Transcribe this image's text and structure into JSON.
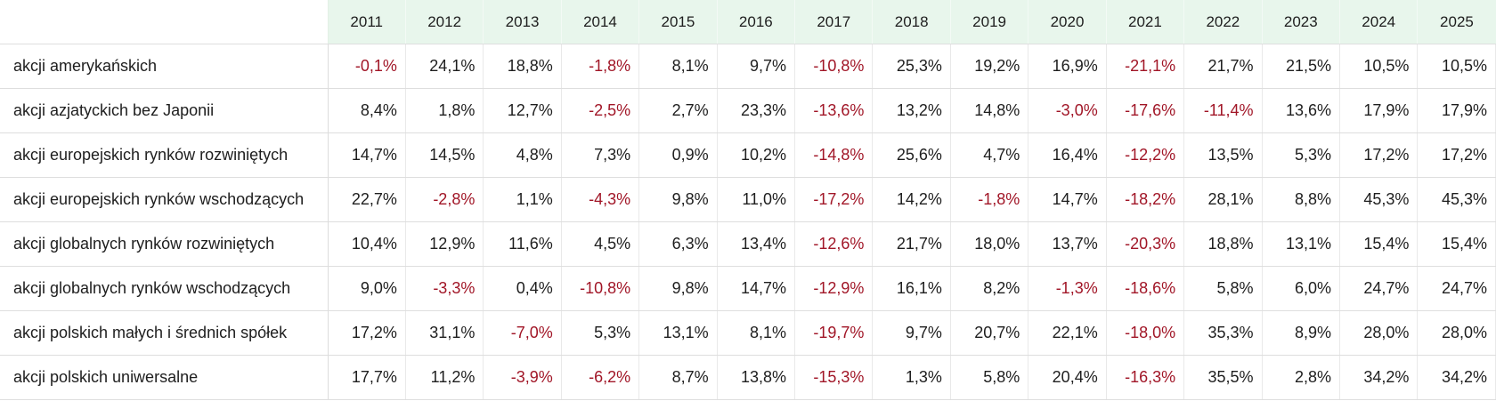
{
  "table": {
    "corner_label": "",
    "columns": [
      "2011",
      "2012",
      "2013",
      "2014",
      "2015",
      "2016",
      "2017",
      "2018",
      "2019",
      "2020",
      "2021",
      "2022",
      "2023",
      "2024",
      "2025"
    ],
    "rows": [
      {
        "label": "akcji amerykańskich",
        "values": [
          "-0,1%",
          "24,1%",
          "18,8%",
          "-1,8%",
          "8,1%",
          "9,7%",
          "-10,8%",
          "25,3%",
          "19,2%",
          "16,9%",
          "-21,1%",
          "21,7%",
          "21,5%",
          "10,5%",
          "10,5%"
        ]
      },
      {
        "label": "akcji azjatyckich bez Japonii",
        "values": [
          "8,4%",
          "1,8%",
          "12,7%",
          "-2,5%",
          "2,7%",
          "23,3%",
          "-13,6%",
          "13,2%",
          "14,8%",
          "-3,0%",
          "-17,6%",
          "-11,4%",
          "13,6%",
          "17,9%",
          "17,9%"
        ]
      },
      {
        "label": "akcji europejskich rynków rozwiniętych",
        "values": [
          "14,7%",
          "14,5%",
          "4,8%",
          "7,3%",
          "0,9%",
          "10,2%",
          "-14,8%",
          "25,6%",
          "4,7%",
          "16,4%",
          "-12,2%",
          "13,5%",
          "5,3%",
          "17,2%",
          "17,2%"
        ]
      },
      {
        "label": "akcji europejskich rynków wschodzących",
        "values": [
          "22,7%",
          "-2,8%",
          "1,1%",
          "-4,3%",
          "9,8%",
          "11,0%",
          "-17,2%",
          "14,2%",
          "-1,8%",
          "14,7%",
          "-18,2%",
          "28,1%",
          "8,8%",
          "45,3%",
          "45,3%"
        ]
      },
      {
        "label": "akcji globalnych rynków rozwiniętych",
        "values": [
          "10,4%",
          "12,9%",
          "11,6%",
          "4,5%",
          "6,3%",
          "13,4%",
          "-12,6%",
          "21,7%",
          "18,0%",
          "13,7%",
          "-20,3%",
          "18,8%",
          "13,1%",
          "15,4%",
          "15,4%"
        ]
      },
      {
        "label": "akcji globalnych rynków wschodzących",
        "values": [
          "9,0%",
          "-3,3%",
          "0,4%",
          "-10,8%",
          "9,8%",
          "14,7%",
          "-12,9%",
          "16,1%",
          "8,2%",
          "-1,3%",
          "-18,6%",
          "5,8%",
          "6,0%",
          "24,7%",
          "24,7%"
        ]
      },
      {
        "label": "akcji polskich małych i średnich spółek",
        "values": [
          "17,2%",
          "31,1%",
          "-7,0%",
          "5,3%",
          "13,1%",
          "8,1%",
          "-19,7%",
          "9,7%",
          "20,7%",
          "22,1%",
          "-18,0%",
          "35,3%",
          "8,9%",
          "28,0%",
          "28,0%"
        ]
      },
      {
        "label": "akcji polskich uniwersalne",
        "values": [
          "17,7%",
          "11,2%",
          "-3,9%",
          "-6,2%",
          "8,7%",
          "13,8%",
          "-15,3%",
          "1,3%",
          "5,8%",
          "20,4%",
          "-16,3%",
          "35,5%",
          "2,8%",
          "34,2%",
          "34,2%"
        ]
      }
    ]
  },
  "colors": {
    "negative_value": "#a11627",
    "positive_value": "#1e1e1e",
    "header_background": "#e8f6ec",
    "grid_line": "#dedede"
  },
  "chart_data": {
    "type": "table",
    "title": "",
    "categories": [
      2011,
      2012,
      2013,
      2014,
      2015,
      2016,
      2017,
      2018,
      2019,
      2020,
      2021,
      2022,
      2023,
      2024,
      2025
    ],
    "value_unit": "percent",
    "decimal_separator": ",",
    "series": [
      {
        "name": "akcji amerykańskich",
        "values": [
          -0.1,
          24.1,
          18.8,
          -1.8,
          8.1,
          9.7,
          -10.8,
          25.3,
          19.2,
          16.9,
          -21.1,
          21.7,
          21.5,
          10.5,
          10.5
        ]
      },
      {
        "name": "akcji azjatyckich bez Japonii",
        "values": [
          8.4,
          1.8,
          12.7,
          -2.5,
          2.7,
          23.3,
          -13.6,
          13.2,
          14.8,
          -3.0,
          -17.6,
          -11.4,
          13.6,
          17.9,
          17.9
        ]
      },
      {
        "name": "akcji europejskich rynków rozwiniętych",
        "values": [
          14.7,
          14.5,
          4.8,
          7.3,
          0.9,
          10.2,
          -14.8,
          25.6,
          4.7,
          16.4,
          -12.2,
          13.5,
          5.3,
          17.2,
          17.2
        ]
      },
      {
        "name": "akcji europejskich rynków wschodzących",
        "values": [
          22.7,
          -2.8,
          1.1,
          -4.3,
          9.8,
          11.0,
          -17.2,
          14.2,
          -1.8,
          14.7,
          -18.2,
          28.1,
          8.8,
          45.3,
          45.3
        ]
      },
      {
        "name": "akcji globalnych rynków rozwiniętych",
        "values": [
          10.4,
          12.9,
          11.6,
          4.5,
          6.3,
          13.4,
          -12.6,
          21.7,
          18.0,
          13.7,
          -20.3,
          18.8,
          13.1,
          15.4,
          15.4
        ]
      },
      {
        "name": "akcji globalnych rynków wschodzących",
        "values": [
          9.0,
          -3.3,
          0.4,
          -10.8,
          9.8,
          14.7,
          -12.9,
          16.1,
          8.2,
          -1.3,
          -18.6,
          5.8,
          6.0,
          24.7,
          24.7
        ]
      },
      {
        "name": "akcji polskich małych i średnich spółek",
        "values": [
          17.2,
          31.1,
          -7.0,
          5.3,
          13.1,
          8.1,
          -19.7,
          9.7,
          20.7,
          22.1,
          -18.0,
          35.3,
          8.9,
          28.0,
          28.0
        ]
      },
      {
        "name": "akcji polskich uniwersalne",
        "values": [
          17.7,
          11.2,
          -3.9,
          -6.2,
          8.7,
          13.8,
          -15.3,
          1.3,
          5.8,
          20.4,
          -16.3,
          35.5,
          2.8,
          34.2,
          34.2
        ]
      }
    ],
    "layout": {
      "negative_values_colored_red": true,
      "header_row_background": "light-green",
      "first_column": "fund category labels"
    }
  }
}
